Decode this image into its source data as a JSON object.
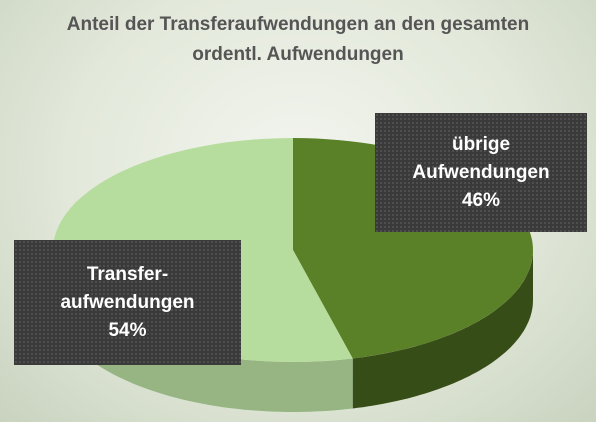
{
  "chart_data": {
    "type": "pie",
    "title": "Anteil der Transferaufwendungen an den gesamten ordentl. Aufwendungen",
    "categories": [
      "übrige Aufwendungen",
      "Transfer­aufwendungen"
    ],
    "values": [
      46,
      54
    ],
    "value_labels": [
      "46%",
      "54%"
    ],
    "colors": [
      "#5b8128",
      "#b7dd9e"
    ]
  }
}
